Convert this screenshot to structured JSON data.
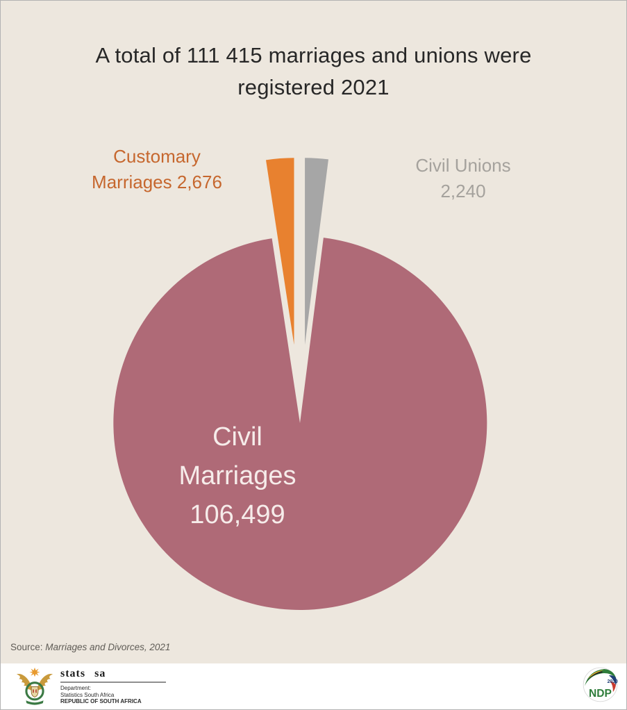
{
  "title": "A total of 111 415 marriages and unions were registered 2021",
  "chart_data": {
    "type": "pie",
    "title": "A total of 111 415 marriages and unions were registered 2021",
    "total": 111415,
    "arrangement": "clockwise-from-top",
    "legend": "none",
    "slices": [
      {
        "name": "Civil Unions",
        "value": 2240,
        "value_display": "2,240",
        "color": "#A6A6A6",
        "exploded": true,
        "label_lines": [
          "Civil Unions",
          "2,240"
        ],
        "label_color": "#A5A29D"
      },
      {
        "name": "Civil Marriages",
        "value": 106499,
        "value_display": "106,499",
        "color": "#AF6A77",
        "exploded": false,
        "label_lines": [
          "Civil",
          "Marriages",
          "106,499"
        ],
        "label_color": "#F6ECEA"
      },
      {
        "name": "Customary Marriages",
        "value": 2676,
        "value_display": "2,676",
        "color": "#E8812F",
        "exploded": true,
        "label_lines": [
          "Customary",
          "Marriages 2,676"
        ],
        "label_color": "#C6672E"
      }
    ]
  },
  "source_note": {
    "prefix": "Source: ",
    "work": "Marriages and Divorces, 2021"
  },
  "footer": {
    "statssa": {
      "brand": "stats sa",
      "lines": [
        "Department:",
        "Statistics South Africa",
        "REPUBLIC OF SOUTH AFRICA"
      ]
    },
    "ndp": {
      "acronym": "NDP",
      "year": "2030"
    }
  },
  "colors": {
    "background": "#EDE7DE",
    "title_text": "#272727"
  }
}
